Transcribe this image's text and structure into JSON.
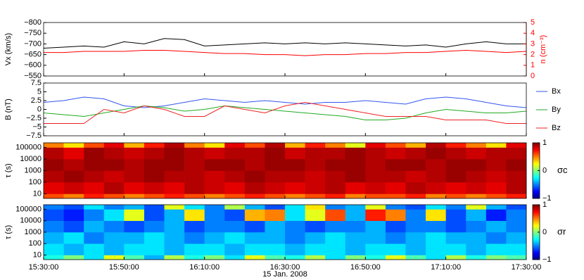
{
  "chart_data": [
    {
      "type": "line",
      "ylabel": "Vx (km/s)",
      "y2label": "n (cm⁻³)",
      "ylim": [
        -800,
        -550
      ],
      "y_inverted": true,
      "yticks": [
        {
          "value": -800,
          "label": "−800"
        },
        {
          "value": -750,
          "label": "−750"
        },
        {
          "value": -700,
          "label": "−700"
        },
        {
          "value": -650,
          "label": "−650"
        },
        {
          "value": -600,
          "label": "−600"
        },
        {
          "value": -550,
          "label": "−550"
        }
      ],
      "y2lim": [
        0,
        5
      ],
      "y2ticks": [
        0,
        1,
        2,
        3,
        4,
        5
      ],
      "y2color": "#ff0000",
      "x": [
        "15:30:00",
        "15:35:00",
        "15:40:00",
        "15:45:00",
        "15:50:00",
        "15:55:00",
        "16:00:00",
        "16:05:00",
        "16:10:00",
        "16:15:00",
        "16:20:00",
        "16:25:00",
        "16:30:00",
        "16:35:00",
        "16:40:00",
        "16:45:00",
        "16:50:00",
        "16:55:00",
        "17:00:00",
        "17:05:00",
        "17:10:00",
        "17:15:00",
        "17:20:00",
        "17:25:00",
        "17:30:00"
      ],
      "series": [
        {
          "color": "#000000",
          "values": [
            -680,
            -685,
            -690,
            -685,
            -710,
            -700,
            -725,
            -720,
            -690,
            -695,
            -700,
            -705,
            -700,
            -705,
            -700,
            -705,
            -700,
            -695,
            -690,
            -695,
            -685,
            -700,
            -710,
            -700,
            -700
          ]
        },
        {
          "color": "#ff0000",
          "axis": "y2",
          "values": [
            2.2,
            2.2,
            2.3,
            2.3,
            2.3,
            2.4,
            2.4,
            2.3,
            2.2,
            2.1,
            2.1,
            2.0,
            2.0,
            1.9,
            2.0,
            2.0,
            2.1,
            2.1,
            2.2,
            2.2,
            2.3,
            2.4,
            2.3,
            2.2,
            2.3
          ]
        }
      ]
    },
    {
      "type": "line",
      "ylabel": "B (nT)",
      "ylim": [
        -7.5,
        7.5
      ],
      "yticks": [
        {
          "value": -7.5,
          "label": "−7.5"
        },
        {
          "value": -5,
          "label": "−5"
        },
        {
          "value": -2.5,
          "label": "−2.5"
        },
        0,
        2.5,
        5,
        7.5
      ],
      "x": [
        "15:30:00",
        "15:35:00",
        "15:40:00",
        "15:45:00",
        "15:50:00",
        "15:55:00",
        "16:00:00",
        "16:05:00",
        "16:10:00",
        "16:15:00",
        "16:20:00",
        "16:25:00",
        "16:30:00",
        "16:35:00",
        "16:40:00",
        "16:45:00",
        "16:50:00",
        "16:55:00",
        "17:00:00",
        "17:05:00",
        "17:10:00",
        "17:15:00",
        "17:20:00",
        "17:25:00",
        "17:30:00"
      ],
      "series": [
        {
          "name": "Bx",
          "color": "#3355ee",
          "values": [
            2,
            2.5,
            3.5,
            3,
            1,
            0.5,
            1,
            2,
            3,
            2.5,
            2,
            2.5,
            2,
            1.5,
            2,
            2,
            2.5,
            2,
            1.5,
            3,
            3.5,
            3,
            2,
            1,
            0.5
          ]
        },
        {
          "name": "By",
          "color": "#22aa22",
          "values": [
            -1,
            -1.5,
            -2,
            -1,
            0,
            1,
            0.5,
            -0.5,
            0,
            1,
            0.5,
            0,
            -0.5,
            -1,
            -1.5,
            -2,
            -3,
            -3,
            -2.5,
            -1,
            0,
            -0.5,
            -1,
            -1,
            -0.5
          ]
        },
        {
          "name": "Bz",
          "color": "#ee2222",
          "values": [
            -4,
            -4,
            -4,
            0,
            -1,
            1,
            0,
            -2,
            -2,
            1,
            0,
            -1,
            1,
            2,
            1,
            0,
            -1,
            -2,
            -2,
            -2,
            -3,
            -3,
            -3,
            -4,
            -4
          ]
        }
      ]
    },
    {
      "type": "heatmap",
      "ylabel": "τ (s)",
      "log_y": true,
      "ylim": [
        4,
        250000
      ],
      "yticks": [
        10,
        100,
        1000,
        10000,
        100000
      ],
      "y_bins": [
        4,
        10,
        100,
        1000,
        10000,
        100000,
        250000
      ],
      "zlim": [
        -1,
        1
      ],
      "zticks": [
        {
          "value": -1,
          "label": "−1"
        },
        0,
        1
      ],
      "colorbar_label": "σc",
      "z": [
        [
          0.6,
          0.5,
          0.7,
          0.6,
          0.5,
          0.6,
          0.7,
          0.6,
          0.5,
          0.6,
          0.7,
          0.6,
          0.5,
          0.6,
          0.7,
          0.5,
          0.6,
          0.6,
          0.7,
          0.5,
          0.6,
          0.5,
          0.6,
          0.7
        ],
        [
          0.8,
          0.85,
          0.8,
          0.9,
          0.8,
          0.85,
          0.8,
          0.9,
          0.85,
          0.8,
          0.9,
          0.85,
          0.8,
          0.85,
          0.9,
          0.8,
          0.85,
          0.8,
          0.9,
          0.85,
          0.8,
          0.85,
          0.8,
          0.9
        ],
        [
          0.9,
          0.95,
          0.9,
          0.85,
          0.9,
          0.95,
          0.9,
          0.9,
          0.85,
          0.9,
          0.95,
          0.9,
          0.9,
          0.85,
          0.9,
          0.95,
          0.9,
          0.9,
          0.85,
          0.9,
          0.95,
          0.9,
          0.85,
          0.9
        ],
        [
          0.95,
          0.9,
          0.95,
          0.95,
          0.9,
          0.95,
          0.95,
          0.9,
          0.95,
          0.95,
          0.9,
          0.95,
          0.95,
          0.9,
          0.95,
          0.95,
          0.9,
          0.95,
          0.95,
          0.9,
          0.95,
          0.95,
          0.9,
          0.95
        ],
        [
          0.9,
          0.8,
          0.95,
          0.9,
          0.85,
          0.9,
          0.95,
          0.9,
          0.85,
          0.9,
          0.9,
          0.95,
          0.85,
          0.9,
          0.9,
          0.95,
          0.9,
          0.85,
          0.9,
          0.95,
          0.9,
          0.85,
          0.9,
          0.9
        ],
        [
          0.5,
          0.3,
          0.6,
          0.8,
          0.4,
          0.7,
          0.9,
          0.5,
          0.3,
          0.8,
          0.6,
          0.9,
          0.4,
          0.7,
          0.5,
          0.2,
          0.8,
          0.6,
          0.4,
          0.9,
          0.7,
          0.5,
          0.3,
          0.8
        ]
      ]
    },
    {
      "type": "heatmap",
      "ylabel": "τ (s)",
      "log_y": true,
      "ylim": [
        4,
        250000
      ],
      "yticks": [
        10,
        100,
        1000,
        10000,
        100000
      ],
      "y_bins": [
        4,
        10,
        100,
        1000,
        10000,
        100000,
        250000
      ],
      "zlim": [
        -1,
        1
      ],
      "zticks": [
        {
          "value": -1,
          "label": "−1"
        },
        0,
        1
      ],
      "colorbar_label": "σr",
      "xlim": [
        "15:30:00",
        "17:30:00"
      ],
      "xticks": [
        "15:30:00",
        "15:50:00",
        "16:10:00",
        "16:30:00",
        "16:50:00",
        "17:10:00",
        "17:30:00"
      ],
      "xlabel": "15 Jan. 2008",
      "z": [
        [
          -0.2,
          0,
          -0.3,
          0.2,
          -0.1,
          -0.4,
          0.1,
          -0.2,
          0,
          -0.3,
          0.2,
          -0.1,
          -0.2,
          0.1,
          -0.3,
          0,
          -0.2,
          0.2,
          -0.1,
          -0.3,
          0.1,
          -0.2,
          0,
          -0.1
        ],
        [
          -0.3,
          -0.4,
          -0.3,
          -0.4,
          -0.3,
          -0.3,
          -0.4,
          -0.3,
          -0.3,
          -0.4,
          -0.3,
          -0.3,
          -0.4,
          -0.3,
          -0.3,
          -0.4,
          -0.3,
          -0.3,
          -0.4,
          -0.3,
          -0.3,
          -0.4,
          -0.3,
          -0.3
        ],
        [
          -0.4,
          -0.3,
          -0.5,
          -0.4,
          -0.4,
          -0.3,
          -0.4,
          -0.5,
          -0.4,
          -0.3,
          -0.4,
          -0.4,
          -0.5,
          -0.4,
          -0.3,
          -0.4,
          -0.4,
          -0.5,
          -0.4,
          -0.3,
          -0.4,
          -0.4,
          -0.5,
          -0.4
        ],
        [
          -0.5,
          -0.6,
          -0.4,
          -0.5,
          -0.6,
          -0.5,
          -0.4,
          -0.6,
          -0.5,
          -0.5,
          -0.6,
          -0.4,
          -0.5,
          -0.6,
          -0.5,
          -0.5,
          -0.4,
          -0.6,
          -0.5,
          -0.5,
          -0.6,
          -0.5,
          -0.4,
          -0.5
        ],
        [
          -0.6,
          -0.7,
          -0.5,
          -0.3,
          0.2,
          -0.6,
          -0.4,
          0.3,
          -0.5,
          -0.6,
          0.4,
          0.5,
          -0.3,
          0.2,
          0.6,
          -0.4,
          0.7,
          0.5,
          -0.5,
          0.3,
          -0.6,
          -0.4,
          -0.7,
          -0.5
        ],
        [
          -0.5,
          -0.6,
          -0.3,
          -0.5,
          -0.4,
          -0.6,
          0.2,
          -0.3,
          -0.5,
          0.1,
          -0.4,
          -0.6,
          -0.3,
          0.3,
          -0.5,
          -0.4,
          0.2,
          -0.5,
          -0.6,
          -0.3,
          -0.5,
          0.2,
          -0.4,
          -0.6
        ]
      ]
    }
  ]
}
